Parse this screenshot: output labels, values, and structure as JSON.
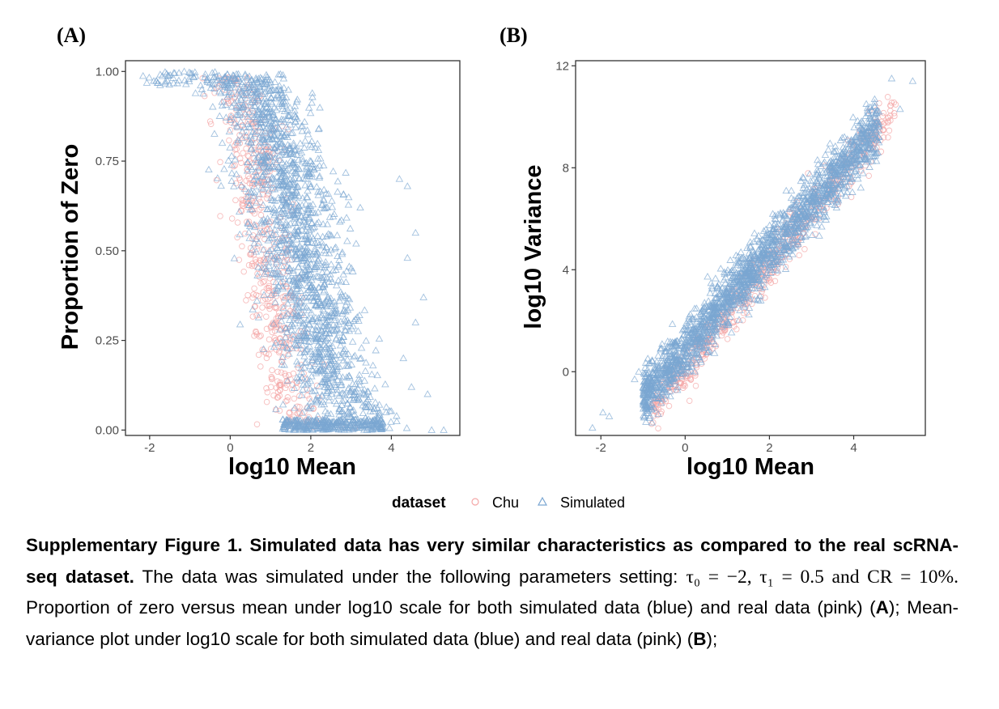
{
  "chart_data": [
    {
      "type": "scatter",
      "panel_label": "(A)",
      "xlabel": "log10 Mean",
      "ylabel": "Proportion of Zero",
      "xlim": [
        -2.6,
        5.7
      ],
      "ylim": [
        -0.015,
        1.03
      ],
      "xticks": [
        -2,
        0,
        2,
        4
      ],
      "xtick_labels": [
        "-2",
        "0",
        "2",
        "4"
      ],
      "yticks": [
        0,
        0.25,
        0.5,
        0.75,
        1.0
      ],
      "ytick_labels": [
        "0.00",
        "0.25",
        "0.50",
        "0.75",
        "1.00"
      ],
      "series": [
        {
          "name": "Chu",
          "marker": "circle",
          "color": "#f4a7a7",
          "trend": "proportion of zero falls from ~1.0 at log10 mean ≈ 0 to ~0 at log10 mean ≈ 1.3; points concentrated between -0.5 and 2.5"
        },
        {
          "name": "Simulated",
          "marker": "triangle",
          "color": "#7aa6d2",
          "trend": "proportion of zero falls from ~1.0 at log10 mean ≈ -2.2 to ~0 at log10 mean ≈ 3; outliers extend to log10 mean ≈ 5.3"
        }
      ]
    },
    {
      "type": "scatter",
      "panel_label": "(B)",
      "xlabel": "log10 Mean",
      "ylabel": "log10 Variance",
      "xlim": [
        -2.6,
        5.7
      ],
      "ylim": [
        -2.5,
        12.2
      ],
      "xticks": [
        -2,
        0,
        2,
        4
      ],
      "xtick_labels": [
        "-2",
        "0",
        "2",
        "4"
      ],
      "yticks": [
        0,
        4,
        8,
        12
      ],
      "ytick_labels": [
        "0",
        "4",
        "8",
        "12"
      ],
      "series": [
        {
          "name": "Chu",
          "marker": "circle",
          "color": "#f4a7a7",
          "trend": "log10 variance increases roughly linearly with log10 mean, from ~0.5 at mean ≈ -0.8 to ~10 at mean ≈ 5"
        },
        {
          "name": "Simulated",
          "marker": "triangle",
          "color": "#7aa6d2",
          "trend": "log10 variance increases roughly linearly with log10 mean, from ~-2.2 at mean ≈ -2.2 to ~11.5 at mean ≈ 5.4"
        }
      ]
    }
  ],
  "legend": {
    "title": "dataset",
    "items": [
      {
        "label": "Chu",
        "marker": "circle",
        "color": "#f4a7a7"
      },
      {
        "label": "Simulated",
        "marker": "triangle",
        "color": "#7aa6d2"
      }
    ]
  },
  "caption": {
    "lead": "Supplementary Figure 1. Simulated data has very similar characteristics as compared to the real scRNA-seq dataset.",
    "text1": "The data was simulated under the following parameters setting:",
    "math": "τ₀ = −2, τ₁ = 0.5 and CR = 10%.",
    "text2": "Proportion of zero versus mean under log10 scale for both simulated data (blue) and real data (pink) (",
    "ref_a": "A",
    "text3": "); Mean-variance plot under log10 scale for both simulated data (blue) and real data (pink) (",
    "ref_b": "B",
    "text4": ");"
  }
}
